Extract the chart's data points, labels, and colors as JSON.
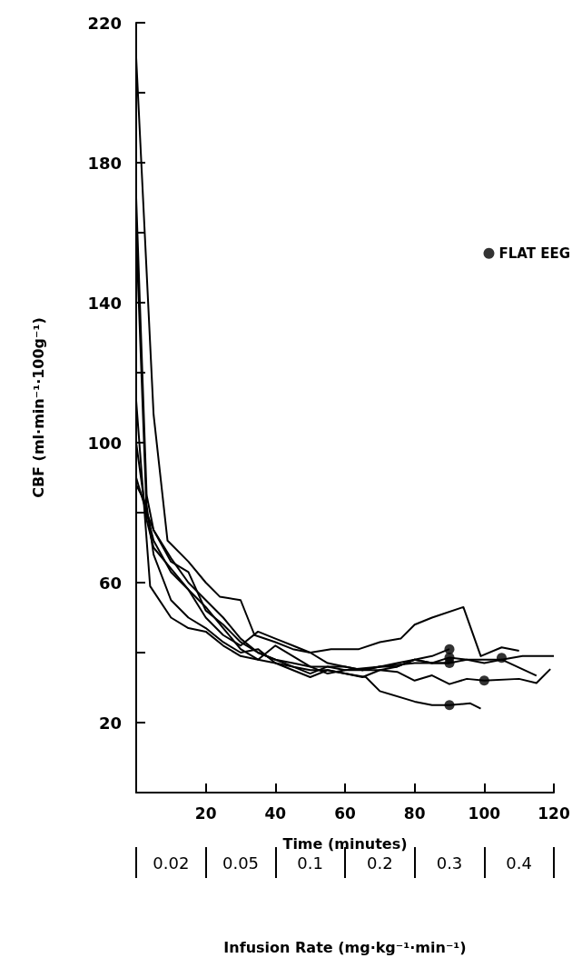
{
  "chart_data": {
    "type": "line",
    "xlabel": "Time (minutes)",
    "ylabel": "CBF (ml·min⁻¹·100g⁻¹)",
    "x2label": "Infusion Rate (mg·kg⁻¹·min⁻¹)",
    "xlim": [
      0,
      120
    ],
    "xticks": [
      20,
      40,
      60,
      80,
      100,
      120
    ],
    "annotations": [
      "0.02",
      "0.05",
      "0.1",
      "0.2",
      "0.3",
      "0.4"
    ],
    "ylim": [
      0,
      220
    ],
    "yticks": [
      20,
      {
        "value": 40,
        "label": null
      },
      60,
      {
        "value": 80,
        "label": null
      },
      100,
      {
        "value": 120,
        "label": null
      },
      140,
      {
        "value": 160,
        "label": null
      },
      180,
      {
        "value": 200,
        "label": null
      },
      220
    ],
    "grid": false,
    "legend": "right",
    "line_style": "solid",
    "marker": "none",
    "series": [
      {
        "color": "#000000",
        "x": [
          0,
          5,
          9,
          15,
          20,
          24,
          30,
          34,
          40,
          45,
          50,
          56,
          60,
          64,
          70,
          76,
          80,
          85,
          94,
          99,
          105,
          110
        ],
        "values": [
          210,
          108,
          72,
          66,
          60,
          56,
          55,
          45,
          43,
          41,
          40,
          41,
          41,
          41,
          43,
          44,
          48,
          50,
          53,
          39,
          41.5,
          40.5
        ]
      },
      {
        "color": "#000000",
        "x": [
          0,
          3,
          5,
          10,
          15,
          20,
          25,
          30,
          35,
          40,
          45,
          50,
          55,
          60,
          66,
          70,
          80,
          85,
          90,
          96,
          99
        ],
        "values": [
          170,
          85,
          75,
          66,
          63,
          52,
          48,
          43,
          40,
          38,
          36,
          35,
          35,
          34,
          33,
          29,
          26,
          25,
          25,
          25.5,
          24
        ]
      },
      {
        "color": "#000000",
        "x": [
          0,
          4,
          10,
          15,
          20,
          25,
          30,
          35,
          40,
          45,
          50,
          55,
          60,
          65,
          70,
          75,
          80,
          85,
          90,
          95,
          100,
          110,
          115,
          119
        ],
        "values": [
          112,
          59,
          50,
          47,
          46,
          42,
          39,
          38,
          37,
          36,
          34,
          36,
          36,
          35,
          35,
          34.5,
          32,
          33.5,
          31,
          32.5,
          32,
          32.5,
          31.3,
          35.3
        ]
      },
      {
        "color": "#000000",
        "x": [
          0,
          3,
          5,
          10,
          15,
          20,
          25,
          30,
          35,
          40,
          45,
          50,
          55,
          60,
          70,
          80,
          85,
          90,
          95,
          100,
          105,
          111,
          120
        ],
        "values": [
          160,
          80,
          75,
          67,
          60,
          55,
          50,
          44,
          40,
          38,
          37,
          36,
          36,
          35,
          36,
          37,
          37,
          38.6,
          38,
          37,
          38,
          39,
          39
        ]
      },
      {
        "color": "#000000",
        "x": [
          0,
          3,
          5,
          10,
          15,
          20,
          25,
          30,
          35,
          40,
          45,
          50,
          55,
          60,
          65,
          70,
          75,
          80,
          85,
          90,
          95,
          100,
          105,
          115
        ],
        "values": [
          100,
          78,
          70,
          64,
          58,
          53,
          47,
          41,
          38,
          42,
          39,
          36,
          34,
          35,
          35,
          36,
          37,
          38,
          37,
          37,
          38,
          38,
          38,
          33.4
        ]
      },
      {
        "color": "#000000",
        "x": [
          0,
          3,
          5,
          10,
          15,
          20,
          25,
          30,
          35,
          40,
          45,
          50,
          55,
          60,
          65,
          70,
          75,
          80,
          85,
          90
        ],
        "values": [
          90,
          80,
          72,
          63,
          58,
          50,
          45,
          42,
          46,
          44,
          42,
          40,
          37,
          36,
          35,
          36,
          36,
          38,
          39,
          41
        ]
      },
      {
        "color": "#000000",
        "x": [
          0,
          3,
          5,
          10,
          15,
          20,
          25,
          30,
          35,
          40,
          45,
          50,
          55,
          60,
          65,
          70,
          75,
          80,
          85,
          90
        ],
        "values": [
          88,
          82,
          68,
          55,
          50,
          47,
          43,
          40,
          41,
          37,
          35,
          33,
          35,
          34,
          33,
          35,
          36,
          38,
          37,
          37
        ]
      },
      {
        "type": "scatter",
        "name": "FLAT EEG",
        "marker": "circle",
        "color": "#000000",
        "x": [
          90,
          90,
          90,
          100,
          105,
          90
        ],
        "values": [
          41,
          38.6,
          37,
          32,
          38.5,
          25
        ]
      }
    ]
  }
}
